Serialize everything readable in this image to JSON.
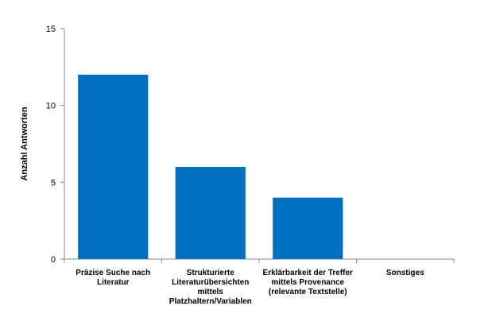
{
  "chart_data": {
    "type": "bar",
    "categories": [
      [
        "Präzise Suche nach",
        "Literatur"
      ],
      [
        "Strukturierte",
        "Literaturübersichten",
        "mittels",
        "Platzhaltern/Variablen"
      ],
      [
        "Erklärbarkeit der Treffer",
        "mittels Provenance",
        "(relevante Textstelle)"
      ],
      [
        "Sonstiges"
      ]
    ],
    "values": [
      12,
      6,
      4,
      0
    ],
    "ylabel": "Anzahl Antworten",
    "ylim": [
      0,
      15
    ],
    "yticks": [
      0,
      5,
      10,
      15
    ],
    "bar_color": "#0070C0",
    "grid": false
  }
}
